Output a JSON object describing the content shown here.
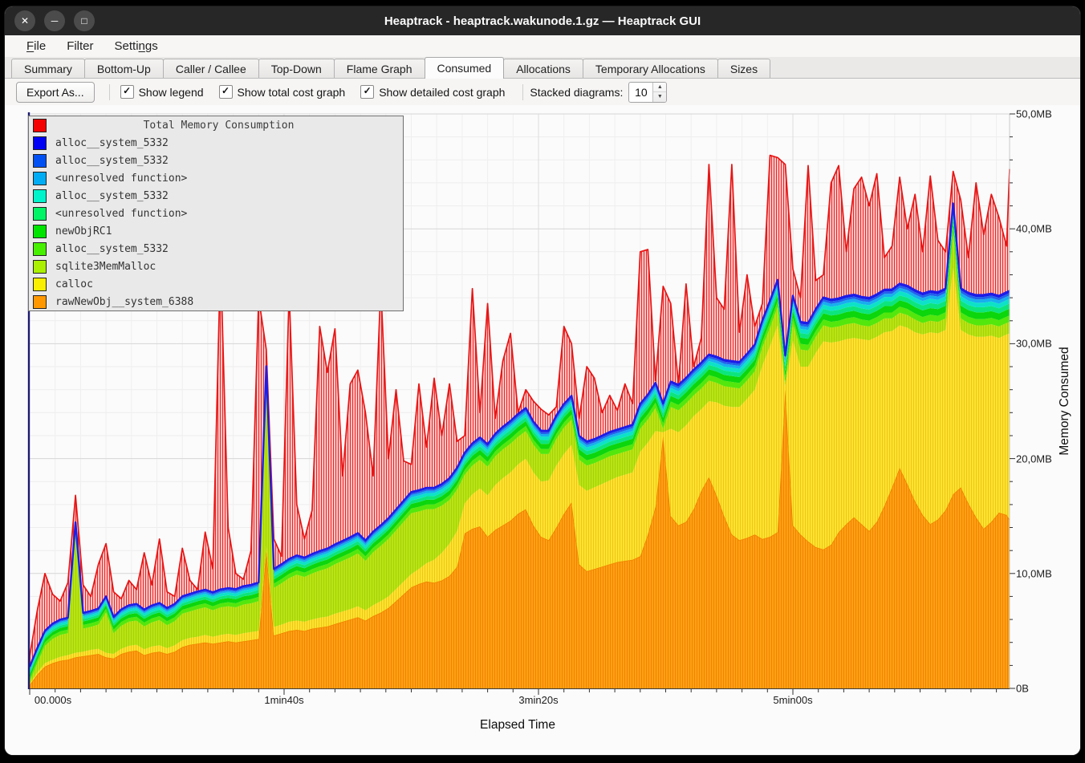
{
  "window": {
    "title": "Heaptrack - heaptrack.wakunode.1.gz — Heaptrack GUI",
    "controls": [
      {
        "name": "close",
        "glyph": "✕"
      },
      {
        "name": "minimize",
        "glyph": "─"
      },
      {
        "name": "maximize",
        "glyph": "□"
      }
    ]
  },
  "menubar": {
    "items": [
      {
        "label": "File",
        "underline": 0
      },
      {
        "label": "Filter",
        "underline": -1
      },
      {
        "label": "Settings",
        "underline": 5
      }
    ]
  },
  "tabs": {
    "active_index": 5,
    "items": [
      "Summary",
      "Bottom-Up",
      "Caller / Callee",
      "Top-Down",
      "Flame Graph",
      "Consumed",
      "Allocations",
      "Temporary Allocations",
      "Sizes"
    ]
  },
  "toolbar": {
    "export_button": "Export As...",
    "checkboxes": [
      {
        "label": "Show legend",
        "checked": true
      },
      {
        "label": "Show total cost graph",
        "checked": true
      },
      {
        "label": "Show detailed cost graph",
        "checked": true
      }
    ],
    "stacked_label": "Stacked diagrams:",
    "stacked_value": "10",
    "check_glyph": "✓",
    "spin_up_icon": "▲",
    "spin_down_icon": "▼"
  },
  "chart_data": {
    "type": "area",
    "title": "Total Memory Consumption",
    "xlabel": "Elapsed Time",
    "ylabel": "Memory Consumed",
    "x_unit": "seconds",
    "x_step": 3,
    "n_points": 130,
    "ylim": [
      0,
      50
    ],
    "xlim_seconds": [
      0,
      387
    ],
    "grid": true,
    "stack_stroke": "#1d1de8",
    "y_ticks": [
      {
        "label": "0B",
        "value": 0
      },
      {
        "label": "10,0MB",
        "value": 10
      },
      {
        "label": "20,0MB",
        "value": 20
      },
      {
        "label": "30,0MB",
        "value": 30
      },
      {
        "label": "40,0MB",
        "value": 40
      },
      {
        "label": "50,0MB",
        "value": 50
      }
    ],
    "y_minor_step": 2,
    "x_ticks": [
      {
        "label": "00.000s",
        "seconds": 0
      },
      {
        "label": "1min40s",
        "seconds": 100
      },
      {
        "label": "3min20s",
        "seconds": 200
      },
      {
        "label": "5min00s",
        "seconds": 300
      }
    ],
    "x_minor_step_seconds": 10,
    "legend": {
      "position": "top-left",
      "items": [
        {
          "label": "Total Memory Consumption",
          "color": "#f40000",
          "is_title": true
        },
        {
          "label": "alloc__system_5332",
          "color": "#0000f4"
        },
        {
          "label": "alloc__system_5332",
          "color": "#0050f4"
        },
        {
          "label": "<unresolved function>",
          "color": "#00acf4"
        },
        {
          "label": "alloc__system_5332",
          "color": "#00f4cb"
        },
        {
          "label": "<unresolved function>",
          "color": "#00f465"
        },
        {
          "label": "newObjRC1",
          "color": "#00e400"
        },
        {
          "label": "alloc__system_5332",
          "color": "#47ef00"
        },
        {
          "label": "sqlite3MemMalloc",
          "color": "#aaf000"
        },
        {
          "label": "calloc",
          "color": "#f8f000"
        },
        {
          "label": "rawNewObj__system_6388",
          "color": "#ff9800"
        }
      ]
    },
    "series": [
      {
        "name": "rawNewObj__system_6388",
        "unit": "MB",
        "fill": "#ffa011",
        "stripe": "#ef8307",
        "edge": "#f08400",
        "values": [
          0.3,
          1.2,
          1.9,
          2.2,
          2.4,
          2.5,
          2.7,
          2.8,
          2.9,
          3.0,
          2.7,
          2.6,
          3.0,
          3.2,
          3.3,
          2.9,
          3.1,
          3.2,
          3.0,
          3.2,
          3.6,
          3.8,
          3.9,
          4.0,
          3.9,
          4.0,
          4.1,
          4.0,
          4.1,
          4.2,
          4.3,
          12.0,
          4.6,
          4.8,
          5.0,
          5.1,
          5.0,
          5.2,
          5.3,
          5.4,
          5.6,
          5.8,
          6.0,
          6.2,
          5.9,
          6.3,
          6.6,
          7.0,
          7.6,
          8.2,
          8.8,
          9.1,
          9.3,
          9.2,
          9.4,
          9.8,
          10.6,
          13.5,
          13.9,
          14.1,
          13.2,
          13.8,
          14.2,
          14.6,
          15.2,
          15.6,
          14.2,
          13.2,
          12.9,
          14.0,
          15.2,
          16.2,
          10.8,
          10.2,
          10.4,
          10.6,
          10.8,
          11.0,
          11.1,
          11.2,
          11.5,
          13.4,
          15.8,
          22.0,
          15.0,
          14.2,
          14.5,
          15.6,
          17.2,
          18.4,
          16.8,
          15.0,
          13.4,
          12.9,
          13.1,
          13.4,
          13.0,
          13.2,
          13.6,
          26.0,
          14.2,
          13.4,
          12.8,
          12.3,
          12.1,
          12.5,
          13.6,
          14.3,
          14.9,
          14.3,
          13.7,
          14.5,
          15.9,
          17.5,
          19.2,
          17.8,
          16.3,
          15.1,
          14.3,
          14.7,
          15.5,
          16.9,
          17.5,
          16.1,
          14.9,
          13.9,
          14.5,
          15.3,
          15.1,
          14.7
        ]
      },
      {
        "name": "calloc",
        "unit": "MB",
        "fill": "#fde32e",
        "stripe": "#eec51a",
        "values": [
          0.1,
          0.2,
          0.3,
          0.3,
          0.35,
          0.4,
          0.4,
          0.4,
          0.45,
          0.45,
          0.4,
          0.4,
          0.45,
          0.5,
          0.5,
          0.5,
          0.55,
          0.55,
          0.5,
          0.55,
          0.6,
          0.6,
          0.6,
          0.65,
          0.6,
          0.65,
          0.65,
          0.65,
          0.7,
          0.7,
          0.7,
          0.4,
          0.75,
          0.75,
          0.8,
          0.8,
          0.8,
          0.8,
          0.85,
          0.85,
          0.9,
          0.9,
          0.9,
          0.95,
          0.9,
          0.95,
          1.0,
          1.0,
          1.05,
          1.1,
          1.15,
          1.3,
          1.6,
          2.0,
          2.4,
          2.8,
          3.1,
          2.6,
          3.0,
          3.3,
          3.6,
          3.9,
          4.1,
          4.2,
          4.3,
          4.4,
          4.6,
          4.8,
          5.2,
          5.4,
          5.2,
          5.0,
          6.9,
          7.0,
          7.1,
          7.2,
          7.3,
          7.4,
          7.5,
          7.6,
          9.1,
          8.0,
          6.6,
          0.3,
          7.6,
          8.1,
          8.4,
          8.1,
          7.1,
          6.6,
          8.1,
          9.6,
          11.1,
          11.6,
          12.1,
          12.6,
          15.1,
          16.6,
          18.0,
          0.3,
          16.1,
          14.6,
          15.2,
          16.9,
          18.1,
          17.6,
          16.6,
          16.1,
          15.6,
          16.1,
          16.6,
          16.1,
          15.1,
          13.6,
          12.4,
          13.6,
          14.7,
          15.7,
          16.7,
          16.2,
          15.7,
          19.7,
          13.7,
          14.7,
          15.7,
          16.7,
          16.2,
          15.2,
          15.7,
          16.2
        ]
      },
      {
        "name": "sqlite3MemMalloc",
        "unit": "MB",
        "fill": "#b8e512",
        "stripe": "#a6d00e",
        "values": [
          0.2,
          0.8,
          1.5,
          1.8,
          1.9,
          1.9,
          10.0,
          2.0,
          2.0,
          2.1,
          3.5,
          1.8,
          2.0,
          2.1,
          2.1,
          2.0,
          2.1,
          2.2,
          2.0,
          2.1,
          2.3,
          2.3,
          2.4,
          2.4,
          2.3,
          2.4,
          2.4,
          2.4,
          2.5,
          2.5,
          2.6,
          14.0,
          3.4,
          3.6,
          3.8,
          4.0,
          3.9,
          4.0,
          4.1,
          4.2,
          4.3,
          4.4,
          4.5,
          4.6,
          4.3,
          4.6,
          4.8,
          5.0,
          5.1,
          5.2,
          5.3,
          5.0,
          4.7,
          4.4,
          4.1,
          3.8,
          3.6,
          2.5,
          2.5,
          2.5,
          2.5,
          2.5,
          2.5,
          2.5,
          2.4,
          2.4,
          2.4,
          2.4,
          2.3,
          2.3,
          2.3,
          2.2,
          2.2,
          2.2,
          2.1,
          2.1,
          2.1,
          2.0,
          2.0,
          2.0,
          2.0,
          2.0,
          2.0,
          0.3,
          1.9,
          1.9,
          1.9,
          1.8,
          1.8,
          1.8,
          1.7,
          1.7,
          1.7,
          1.6,
          1.6,
          1.6,
          1.6,
          1.6,
          1.6,
          0.3,
          1.5,
          1.5,
          1.4,
          1.4,
          1.4,
          1.3,
          1.3,
          1.3,
          1.3,
          1.2,
          1.2,
          1.2,
          1.2,
          1.1,
          1.1,
          1.1,
          1.1,
          1.0,
          1.0,
          1.0,
          1.0,
          3.0,
          1.0,
          1.0,
          1.0,
          1.0,
          1.0,
          1.0,
          1.0,
          1.0
        ]
      },
      {
        "name": "alloc__system_5332",
        "unit": "MB",
        "fill": "#53e70d",
        "ramp": [
          0.3,
          0.55
        ]
      },
      {
        "name": "newObjRC1",
        "unit": "MB",
        "fill": "#0cd60c",
        "ramp": [
          0.3,
          0.6
        ]
      },
      {
        "name": "<unresolved function>",
        "unit": "MB",
        "fill": "#0ce57d",
        "ramp": [
          0.2,
          0.45
        ]
      },
      {
        "name": "alloc__system_5332",
        "unit": "MB",
        "fill": "#0de2c8",
        "ramp": [
          0.2,
          0.4
        ]
      },
      {
        "name": "<unresolved function>",
        "unit": "MB",
        "fill": "#17aeee",
        "ramp": [
          0.12,
          0.3
        ]
      },
      {
        "name": "alloc__system_5332",
        "unit": "MB",
        "fill": "#2162ec",
        "ramp": [
          0.09,
          0.22
        ]
      },
      {
        "name": "alloc__system_5332",
        "unit": "MB",
        "fill": "#1717e9",
        "ramp": [
          0.09,
          0.18
        ]
      },
      {
        "name": "Total Memory Consumption",
        "unit": "MB",
        "absolute": true,
        "fill": "#f8c5c5",
        "stripe": "#ee2424",
        "edge": "#e81414",
        "values": [
          2.8,
          6.8,
          10.0,
          8.2,
          7.6,
          9.2,
          16.8,
          9.0,
          8.0,
          10.8,
          12.6,
          8.4,
          7.8,
          9.4,
          8.6,
          11.8,
          9.0,
          13.0,
          8.4,
          8.0,
          12.2,
          9.4,
          8.6,
          13.6,
          10.4,
          37.5,
          14.0,
          10.0,
          9.5,
          12.0,
          34.0,
          29.5,
          13.0,
          11.5,
          34.5,
          16.0,
          13.0,
          15.5,
          31.5,
          27.5,
          31.3,
          18.5,
          26.5,
          27.7,
          24.0,
          18.5,
          35.0,
          20.0,
          26.0,
          19.8,
          19.5,
          26.5,
          21.0,
          27.0,
          22.0,
          26.5,
          21.5,
          22.0,
          34.8,
          24.0,
          33.5,
          23.5,
          28.5,
          30.9,
          24.0,
          26.0,
          25.0,
          24.3,
          23.8,
          24.5,
          31.5,
          30.0,
          23.5,
          28.0,
          27.0,
          24.0,
          25.5,
          24.2,
          26.5,
          24.8,
          38.0,
          38.2,
          26.8,
          35.0,
          33.5,
          26.5,
          35.2,
          28.0,
          30.5,
          45.6,
          34.0,
          33.0,
          45.6,
          31.0,
          36.0,
          31.5,
          33.5,
          46.4,
          46.2,
          45.6,
          36.5,
          34.0,
          45.5,
          35.5,
          36.0,
          44.0,
          45.5,
          38.0,
          43.5,
          44.5,
          42.0,
          44.8,
          37.5,
          38.5,
          44.5,
          40.0,
          43.0,
          38.0,
          44.6,
          39.0,
          38.0,
          45.0,
          42.5,
          37.5,
          44.0,
          39.5,
          43.0,
          41.0,
          38.5,
          45.2
        ]
      }
    ]
  }
}
